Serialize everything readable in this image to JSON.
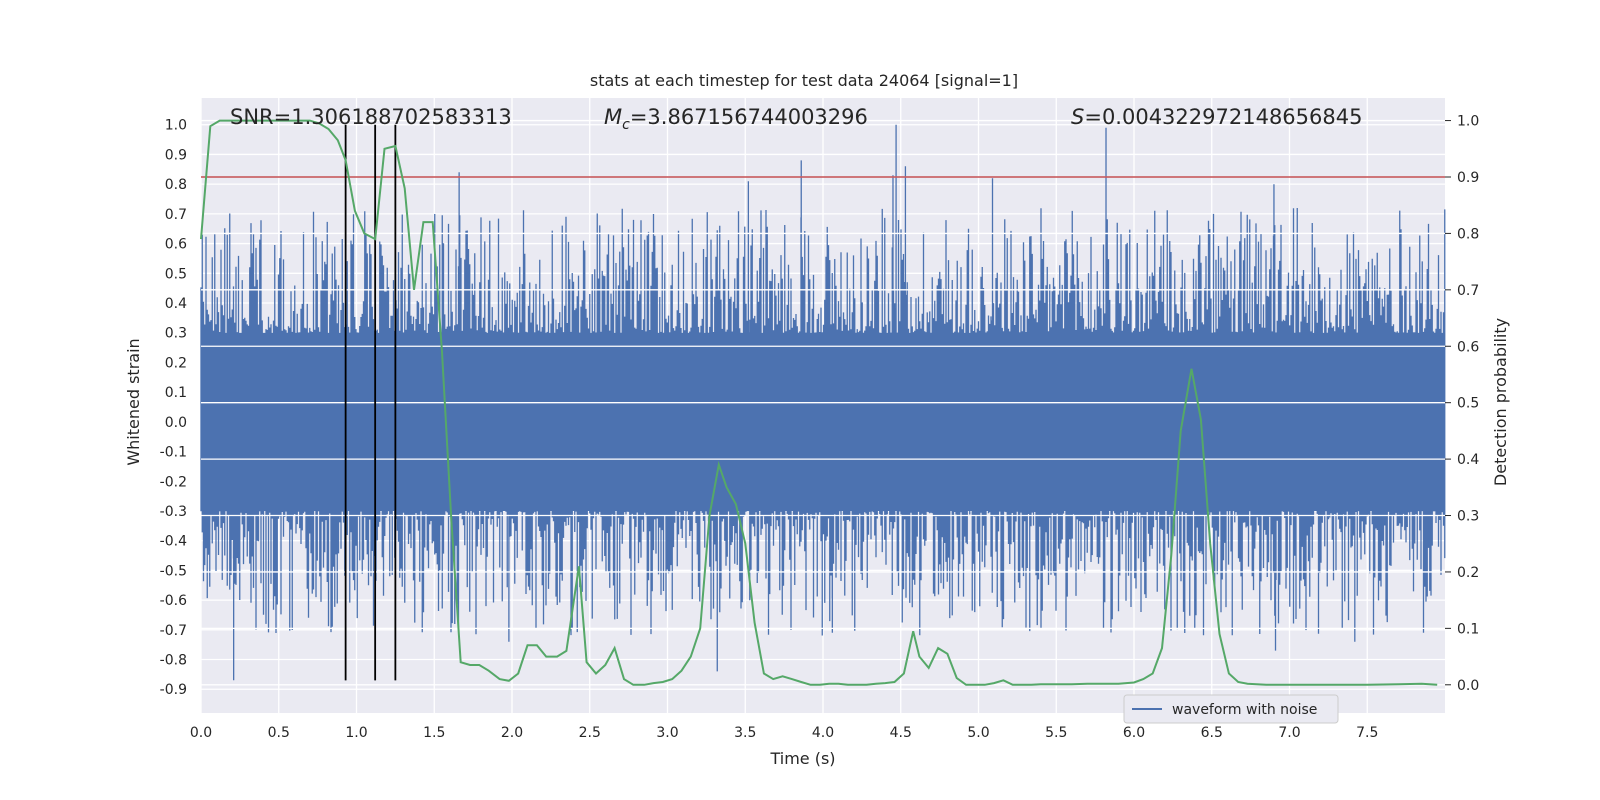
{
  "chart_data": {
    "type": "line",
    "title": "stats at each timestep for test data 24064 [signal=1]",
    "xlabel": "Time (s)",
    "ylabel_left": "Whitened strain",
    "ylabel_right": "Detection probability",
    "xlim": [
      0.0,
      8.0
    ],
    "ylim_left": [
      -0.98,
      1.09
    ],
    "ylim_right": [
      -0.05,
      1.04
    ],
    "x_ticks": [
      "0.0",
      "0.5",
      "1.0",
      "1.5",
      "2.0",
      "2.5",
      "3.0",
      "3.5",
      "4.0",
      "4.5",
      "5.0",
      "5.5",
      "6.0",
      "6.5",
      "7.0",
      "7.5"
    ],
    "y_ticks_left": [
      "1.0",
      "0.9",
      "0.8",
      "0.7",
      "0.6",
      "0.5",
      "0.4",
      "0.3",
      "0.2",
      "0.1",
      "0.0",
      "-0.1",
      "-0.2",
      "-0.3",
      "-0.4",
      "-0.5",
      "-0.6",
      "-0.7",
      "-0.8",
      "-0.9"
    ],
    "y_ticks_right": [
      "1.0",
      "0.9",
      "0.8",
      "0.7",
      "0.6",
      "0.5",
      "0.4",
      "0.3",
      "0.2",
      "0.1",
      "0.0"
    ],
    "grid": true,
    "legend_position": "bottom-right",
    "annotations": {
      "snr": "SNR=1.306188702583313",
      "mc_symbol": "M",
      "mc_sub": "c",
      "mc_value": "=3.867156744003296",
      "s_symbol": "S",
      "s_value": "=0.004322972148656845"
    },
    "threshold": {
      "value": 0.9,
      "axis": "right",
      "color": "#c44e52"
    },
    "vertical_markers": {
      "x": [
        0.93,
        1.12,
        1.25
      ],
      "y_range": [
        -0.87,
        1.0
      ],
      "color": "#000000"
    },
    "series": [
      {
        "name": "waveform with noise",
        "axis": "left",
        "color": "#4c72b0",
        "peaks": [
          {
            "x": 1.66,
            "y": 0.84
          },
          {
            "x": 3.52,
            "y": 0.81
          },
          {
            "x": 3.86,
            "y": 0.88
          },
          {
            "x": 4.45,
            "y": 0.83
          },
          {
            "x": 4.47,
            "y": 1.0
          },
          {
            "x": 4.53,
            "y": 0.86
          },
          {
            "x": 5.09,
            "y": 0.82
          },
          {
            "x": 5.82,
            "y": 0.99
          },
          {
            "x": 6.9,
            "y": 0.8
          },
          {
            "x": 0.21,
            "y": -0.87
          },
          {
            "x": 3.32,
            "y": -0.84
          },
          {
            "x": 1.98,
            "y": -0.74
          },
          {
            "x": 6.91,
            "y": -0.77
          },
          {
            "x": 7.42,
            "y": -0.74
          },
          {
            "x": 4.06,
            "y": -0.71
          }
        ]
      },
      {
        "axis": "right",
        "color": "#55a868",
        "x": [
          0.0,
          0.06,
          0.12,
          0.2,
          0.3,
          0.4,
          0.5,
          0.6,
          0.7,
          0.76,
          0.82,
          0.88,
          0.93,
          0.99,
          1.05,
          1.12,
          1.18,
          1.25,
          1.31,
          1.37,
          1.43,
          1.49,
          1.55,
          1.61,
          1.67,
          1.73,
          1.79,
          1.85,
          1.92,
          1.98,
          2.04,
          2.1,
          2.16,
          2.22,
          2.29,
          2.35,
          2.43,
          2.48,
          2.54,
          2.6,
          2.66,
          2.72,
          2.78,
          2.85,
          2.91,
          2.97,
          3.03,
          3.09,
          3.15,
          3.21,
          3.27,
          3.33,
          3.38,
          3.44,
          3.5,
          3.56,
          3.62,
          3.68,
          3.74,
          3.8,
          3.86,
          3.92,
          3.98,
          4.04,
          4.1,
          4.16,
          4.22,
          4.28,
          4.34,
          4.4,
          4.46,
          4.52,
          4.58,
          4.62,
          4.68,
          4.74,
          4.8,
          4.86,
          4.92,
          4.98,
          5.04,
          5.1,
          5.16,
          5.22,
          5.28,
          5.34,
          5.4,
          5.5,
          5.6,
          5.7,
          5.8,
          5.9,
          6.0,
          6.06,
          6.12,
          6.18,
          6.24,
          6.3,
          6.37,
          6.43,
          6.49,
          6.55,
          6.61,
          6.67,
          6.73,
          6.79,
          6.85,
          6.95,
          7.1,
          7.3,
          7.5,
          7.7,
          7.85,
          7.95
        ],
        "y": [
          0.79,
          0.99,
          1.0,
          1.0,
          1.0,
          1.0,
          1.0,
          1.0,
          1.0,
          0.995,
          0.985,
          0.965,
          0.93,
          0.84,
          0.8,
          0.79,
          0.95,
          0.955,
          0.88,
          0.7,
          0.82,
          0.82,
          0.59,
          0.29,
          0.04,
          0.035,
          0.035,
          0.025,
          0.01,
          0.007,
          0.02,
          0.07,
          0.07,
          0.05,
          0.05,
          0.06,
          0.21,
          0.04,
          0.02,
          0.035,
          0.065,
          0.01,
          0.0,
          0.0,
          0.003,
          0.005,
          0.01,
          0.025,
          0.05,
          0.1,
          0.3,
          0.39,
          0.35,
          0.32,
          0.25,
          0.11,
          0.02,
          0.01,
          0.015,
          0.01,
          0.005,
          0.0,
          0.0,
          0.002,
          0.002,
          0.0,
          0.0,
          0.0,
          0.002,
          0.003,
          0.005,
          0.02,
          0.095,
          0.05,
          0.03,
          0.065,
          0.055,
          0.012,
          0.0,
          0.0,
          0.0,
          0.003,
          0.008,
          0.0,
          0.0,
          0.0,
          0.001,
          0.001,
          0.001,
          0.002,
          0.002,
          0.002,
          0.004,
          0.01,
          0.02,
          0.065,
          0.23,
          0.45,
          0.56,
          0.47,
          0.25,
          0.09,
          0.02,
          0.005,
          0.002,
          0.001,
          0.0,
          0.0,
          0.0,
          0.0,
          0.0,
          0.001,
          0.002,
          0.0
        ]
      }
    ]
  }
}
